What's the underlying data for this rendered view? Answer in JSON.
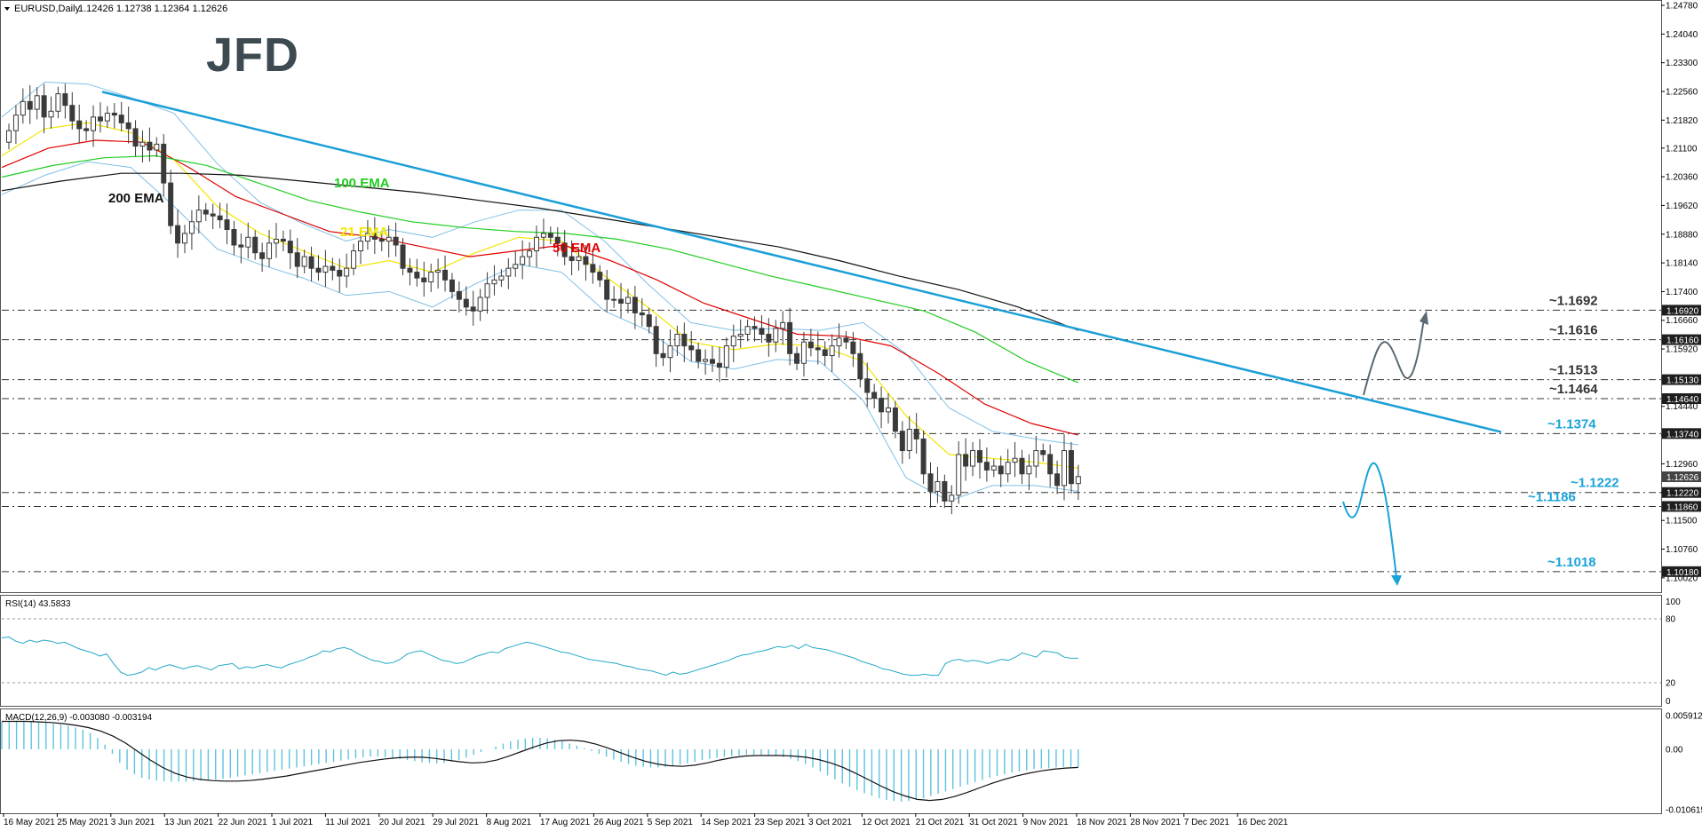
{
  "header": {
    "symbol": "EURUSD,Daily",
    "ohlc": "1.12426 1.12738 1.12364 1.12626"
  },
  "colors": {
    "bull_body": "#ffffff",
    "bear_body": "#3a3a3a",
    "candle_outline": "#3a3a3a",
    "ema21": "#f2e600",
    "ema50": "#e00000",
    "ema100": "#22cc22",
    "ema200": "#111111",
    "bands": "#7fc0e6",
    "trendline": "#1a9fd6",
    "level_tag": "#1e1e1e",
    "price_tag": "#444444",
    "rsi_line": "#22a8c8",
    "macd_hist": "#5cc4e0",
    "macd_signal": "#111111",
    "arrow_up": "#5a6a72",
    "arrow_down": "#1aa3d9"
  },
  "logo": {
    "text": "JFD",
    "color": "#3d4a52"
  },
  "chart_data": {
    "type": "candlestick",
    "title": "EURUSD,Daily",
    "ylim": [
      1.0965,
      1.2478
    ],
    "yticks": [
      "1.24780",
      "1.24040",
      "1.23300",
      "1.22560",
      "1.21820",
      "1.21100",
      "1.20360",
      "1.19620",
      "1.18880",
      "1.18140",
      "1.17400",
      "1.16660",
      "1.15920",
      "1.15180",
      "1.14440",
      "1.13700",
      "1.12960",
      "1.12220",
      "1.11500",
      "1.10760",
      "1.10020"
    ],
    "x_labels": [
      "16 May 2021",
      "25 May 2021",
      "3 Jun 2021",
      "13 Jun 2021",
      "22 Jun 2021",
      "1 Jul 2021",
      "11 Jul 2021",
      "20 Jul 2021",
      "29 Jul 2021",
      "8 Aug 2021",
      "17 Aug 2021",
      "26 Aug 2021",
      "5 Sep 2021",
      "14 Sep 2021",
      "23 Sep 2021",
      "3 Oct 2021",
      "12 Oct 2021",
      "21 Oct 2021",
      "31 Oct 2021",
      "9 Nov 2021",
      "18 Nov 2021",
      "28 Nov 2021",
      "7 Dec 2021",
      "16 Dec 2021"
    ],
    "close_series": [
      1.2155,
      1.2195,
      1.223,
      1.221,
      1.2245,
      1.219,
      1.2205,
      1.225,
      1.222,
      1.218,
      1.216,
      1.2155,
      1.219,
      1.218,
      1.22,
      1.2195,
      1.2175,
      1.216,
      1.2115,
      1.2125,
      1.2105,
      1.212,
      1.202,
      1.191,
      1.1865,
      1.189,
      1.192,
      1.195,
      1.194,
      1.1935,
      1.1925,
      1.19,
      1.186,
      1.1855,
      1.188,
      1.184,
      1.1825,
      1.1865,
      1.1875,
      1.187,
      1.184,
      1.1805,
      1.183,
      1.18,
      1.179,
      1.1805,
      1.1795,
      1.178,
      1.18,
      1.1845,
      1.187,
      1.189,
      1.1875,
      1.187,
      1.188,
      1.186,
      1.18,
      1.179,
      1.1775,
      1.1765,
      1.179,
      1.1795,
      1.177,
      1.174,
      1.172,
      1.17,
      1.169,
      1.1725,
      1.176,
      1.177,
      1.178,
      1.18,
      1.181,
      1.183,
      1.1845,
      1.188,
      1.189,
      1.188,
      1.1865,
      1.183,
      1.182,
      1.183,
      1.181,
      1.179,
      1.177,
      1.172,
      1.172,
      1.171,
      1.1725,
      1.1685,
      1.168,
      1.165,
      1.158,
      1.157,
      1.16,
      1.163,
      1.16,
      1.159,
      1.156,
      1.1565,
      1.1555,
      1.1545,
      1.16,
      1.1625,
      1.163,
      1.165,
      1.1645,
      1.163,
      1.161,
      1.1645,
      1.166,
      1.158,
      1.1555,
      1.161,
      1.1595,
      1.159,
      1.1575,
      1.16,
      1.162,
      1.161,
      1.158,
      1.1515,
      1.148,
      1.1465,
      1.143,
      1.144,
      1.138,
      1.133,
      1.1385,
      1.136,
      1.127,
      1.1225,
      1.125,
      1.12,
      1.1215,
      1.132,
      1.129,
      1.133,
      1.13,
      1.128,
      1.129,
      1.127,
      1.13,
      1.131,
      1.127,
      1.129,
      1.133,
      1.132,
      1.127,
      1.124,
      1.133,
      1.1245,
      1.1263
    ],
    "ema": [
      {
        "name": "21 EMA",
        "values": [
          1.209,
          1.216,
          1.2175,
          1.215,
          1.208,
          1.196,
          1.189,
          1.1845,
          1.18,
          1.182,
          1.179,
          1.184,
          1.188,
          1.187,
          1.178,
          1.17,
          1.161,
          1.159,
          1.1605,
          1.16,
          1.156,
          1.142,
          1.132,
          1.131,
          1.13,
          1.1285
        ]
      },
      {
        "name": "50 EMA",
        "values": [
          1.206,
          1.211,
          1.213,
          1.2125,
          1.206,
          1.1985,
          1.194,
          1.1895,
          1.188,
          1.1855,
          1.183,
          1.1845,
          1.186,
          1.182,
          1.177,
          1.171,
          1.167,
          1.163,
          1.1625,
          1.16,
          1.153,
          1.145,
          1.14,
          1.137
        ]
      },
      {
        "name": "100 EMA",
        "values": [
          1.2035,
          1.2065,
          1.2085,
          1.209,
          1.2065,
          1.202,
          1.1975,
          1.1945,
          1.192,
          1.1905,
          1.1895,
          1.189,
          1.1875,
          1.185,
          1.1815,
          1.178,
          1.175,
          1.172,
          1.169,
          1.1635,
          1.156,
          1.1505
        ]
      },
      {
        "name": "200 EMA",
        "values": [
          1.2,
          1.2025,
          1.2045,
          1.2045,
          1.204,
          1.2025,
          1.201,
          1.1995,
          1.1975,
          1.1955,
          1.193,
          1.1905,
          1.188,
          1.1855,
          1.182,
          1.178,
          1.1745,
          1.17,
          1.164
        ]
      }
    ],
    "trendline": {
      "from": [
        1.2255
      ],
      "to": [
        1.1378
      ]
    },
    "levels": [
      {
        "label": "~1.1692",
        "tag": "1.16920",
        "value": 1.1692,
        "color": "#333333"
      },
      {
        "label": "~1.1616",
        "tag": "1.16160",
        "value": 1.1616,
        "color": "#333333"
      },
      {
        "label": "~1.1513",
        "tag": "1.15130",
        "value": 1.1513,
        "color": "#333333"
      },
      {
        "label": "~1.1464",
        "tag": "1.14640",
        "value": 1.1464,
        "color": "#333333"
      },
      {
        "label": "~1.1374",
        "tag": "1.13740",
        "value": 1.1374,
        "color": "#1aa3d9"
      },
      {
        "label": "~1.1222",
        "tag": "1.12220",
        "value": 1.1222,
        "color": "#1aa3d9"
      },
      {
        "label": "~1.1186",
        "tag": "1.11860",
        "value": 1.1186,
        "color": "#1aa3d9"
      },
      {
        "label": "~1.1018",
        "tag": "1.10180",
        "value": 1.1018,
        "color": "#1aa3d9"
      }
    ],
    "current_price_tag": "1.12626"
  },
  "rsi": {
    "header": "RSI(14) 43.5833",
    "ticks": [
      "100",
      "80",
      "20",
      "0"
    ],
    "values": [
      62,
      63,
      59,
      57,
      60,
      58,
      60,
      59,
      57,
      58,
      55,
      52,
      50,
      48,
      45,
      47,
      38,
      30,
      27,
      28,
      30,
      34,
      32,
      35,
      37,
      35,
      33,
      35,
      36,
      34,
      32,
      36,
      37,
      38,
      33,
      35,
      34,
      36,
      37,
      35,
      34,
      37,
      39,
      41,
      44,
      46,
      50,
      49,
      52,
      53,
      51,
      47,
      44,
      41,
      40,
      38,
      39,
      42,
      47,
      49,
      50,
      47,
      44,
      41,
      40,
      38,
      39,
      42,
      45,
      47,
      49,
      48,
      52,
      54,
      56,
      58,
      57,
      55,
      53,
      51,
      49,
      48,
      46,
      44,
      42,
      41,
      40,
      39,
      38,
      36,
      35,
      33,
      32,
      31,
      29,
      27,
      30,
      28,
      29,
      31,
      33,
      35,
      37,
      39,
      41,
      44,
      46,
      47,
      49,
      50,
      52,
      54,
      53,
      55,
      52,
      56,
      53,
      52,
      51,
      49,
      47,
      45,
      43,
      40,
      38,
      36,
      33,
      32,
      30,
      28,
      27,
      27,
      28,
      27,
      27,
      38,
      41,
      42,
      40,
      41,
      40,
      38,
      40,
      42,
      41,
      44,
      48,
      46,
      44,
      50,
      49,
      48,
      44,
      43,
      43
    ]
  },
  "macd": {
    "header": "MACD(12,26,9) -0.003080 -0.003194",
    "ticks": [
      "0.005912",
      "0.00",
      "-0.010615"
    ],
    "hist": [
      0.0048,
      0.0049,
      0.005,
      0.005,
      0.0049,
      0.0048,
      0.0047,
      0.0045,
      0.0043,
      0.0041,
      0.0038,
      0.0034,
      0.0029,
      0.002,
      0.0008,
      -0.0008,
      -0.0024,
      -0.0036,
      -0.0044,
      -0.005,
      -0.0053,
      -0.0055,
      -0.0056,
      -0.0057,
      -0.0057,
      -0.0057,
      -0.0056,
      -0.0055,
      -0.0054,
      -0.0053,
      -0.0052,
      -0.005,
      -0.0048,
      -0.0046,
      -0.0044,
      -0.0042,
      -0.004,
      -0.0038,
      -0.0036,
      -0.0034,
      -0.0032,
      -0.003,
      -0.0028,
      -0.0026,
      -0.0024,
      -0.0022,
      -0.002,
      -0.0018,
      -0.0016,
      -0.0014,
      -0.0013,
      -0.0013,
      -0.0014,
      -0.0015,
      -0.0017,
      -0.0019,
      -0.0021,
      -0.0023,
      -0.0024,
      -0.0025,
      -0.0024,
      -0.0022,
      -0.0019,
      -0.0015,
      -0.001,
      -0.0005,
      0.0,
      0.0005,
      0.001,
      0.0014,
      0.0017,
      0.0019,
      0.002,
      0.002,
      0.0019,
      0.0017,
      0.0014,
      0.001,
      0.0006,
      0.0002,
      -0.0003,
      -0.0008,
      -0.0013,
      -0.0018,
      -0.0022,
      -0.0026,
      -0.0029,
      -0.0031,
      -0.0032,
      -0.0032,
      -0.0031,
      -0.0029,
      -0.0027,
      -0.0025,
      -0.0022,
      -0.0019,
      -0.0017,
      -0.0015,
      -0.0013,
      -0.0012,
      -0.0011,
      -0.001,
      -0.001,
      -0.001,
      -0.0011,
      -0.0012,
      -0.0014,
      -0.0017,
      -0.0021,
      -0.0026,
      -0.0032,
      -0.0039,
      -0.0046,
      -0.0053,
      -0.006,
      -0.0066,
      -0.0072,
      -0.0077,
      -0.0082,
      -0.0086,
      -0.0089,
      -0.0091,
      -0.0092,
      -0.0091,
      -0.0089,
      -0.0086,
      -0.0082,
      -0.0078,
      -0.0074,
      -0.007,
      -0.0066,
      -0.0062,
      -0.0058,
      -0.0054,
      -0.005,
      -0.0047,
      -0.0044,
      -0.0041,
      -0.0039,
      -0.0037,
      -0.0035,
      -0.0034,
      -0.0033,
      -0.0032,
      -0.0031,
      -0.0031,
      -0.0031
    ],
    "signal": [
      0.0049,
      0.0049,
      0.0049,
      0.0048,
      0.0047,
      0.0045,
      0.0042,
      0.0038,
      0.0032,
      0.0023,
      0.0011,
      -0.0004,
      -0.0019,
      -0.0032,
      -0.0042,
      -0.0049,
      -0.0053,
      -0.0055,
      -0.0056,
      -0.0056,
      -0.0055,
      -0.0053,
      -0.005,
      -0.0047,
      -0.0043,
      -0.0039,
      -0.0035,
      -0.0031,
      -0.0027,
      -0.0023,
      -0.002,
      -0.0017,
      -0.0015,
      -0.0014,
      -0.0014,
      -0.0016,
      -0.0019,
      -0.0022,
      -0.0024,
      -0.0023,
      -0.0019,
      -0.0012,
      -0.0004,
      0.0004,
      0.0011,
      0.0015,
      0.0016,
      0.0014,
      0.0009,
      0.0002,
      -0.0006,
      -0.0014,
      -0.0021,
      -0.0026,
      -0.0029,
      -0.003,
      -0.0028,
      -0.0024,
      -0.0019,
      -0.0015,
      -0.0012,
      -0.0011,
      -0.0011,
      -0.0011,
      -0.0012,
      -0.0014,
      -0.0018,
      -0.0024,
      -0.0032,
      -0.0042,
      -0.0053,
      -0.0064,
      -0.0074,
      -0.0082,
      -0.0088,
      -0.009,
      -0.0088,
      -0.0083,
      -0.0076,
      -0.0068,
      -0.006,
      -0.0053,
      -0.0047,
      -0.0042,
      -0.0038,
      -0.0035,
      -0.0033,
      -0.0032
    ]
  }
}
